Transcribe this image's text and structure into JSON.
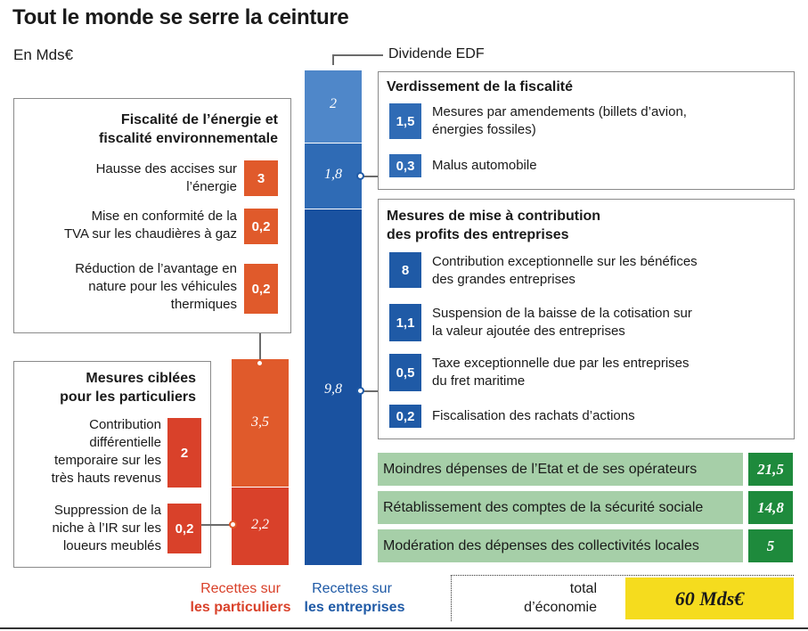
{
  "title": "Tout le monde se serre la ceinture",
  "unit": "En Mds€",
  "dividende_label": "Dividende EDF",
  "fiscalite_energie": {
    "title_line1": "Fiscalité de l’énergie et",
    "title_line2": "fiscalité environnementale",
    "items": [
      {
        "line1": "Hausse des accises sur",
        "line2": "l’énergie",
        "line3": "",
        "value": "3"
      },
      {
        "line1": "Mise en conformité de la",
        "line2": "TVA sur les chaudières à gaz",
        "line3": "",
        "value": "0,2"
      },
      {
        "line1": "Réduction de l’avantage en",
        "line2": "nature pour les véhicules",
        "line3": "thermiques",
        "value": "0,2"
      }
    ]
  },
  "particuliers": {
    "title_line1": "Mesures ciblées",
    "title_line2": "pour les particuliers",
    "items": [
      {
        "line1": "Contribution",
        "line2": "différentielle",
        "line3": "temporaire sur les",
        "line4": "très hauts revenus",
        "value": "2"
      },
      {
        "line1": "Suppression de la",
        "line2": "niche à l’IR sur les",
        "line3": "loueurs meublés",
        "line4": "",
        "value": "0,2"
      }
    ]
  },
  "verdissement": {
    "title": "Verdissement de la fiscalité",
    "items": [
      {
        "line1": "Mesures par  amendements (billets d’avion,",
        "line2": "énergies fossiles)",
        "value": "1,5"
      },
      {
        "line1": "Malus automobile",
        "line2": "",
        "value": "0,3"
      }
    ]
  },
  "profits": {
    "title_line1": "Mesures de mise à contribution",
    "title_line2": "des profits des entreprises",
    "items": [
      {
        "line1": "Contribution exceptionnelle sur les bénéfices",
        "line2": "des grandes entreprises",
        "value": "8"
      },
      {
        "line1": "Suspension de la baisse de la cotisation sur",
        "line2": "la valeur ajoutée des entreprises",
        "value": "1,1"
      },
      {
        "line1": "Taxe exceptionnelle due par les entreprises",
        "line2": "du fret maritime",
        "value": "0,5"
      },
      {
        "line1": "Fiscalisation des rachats d’actions",
        "line2": "",
        "value": "0,2"
      }
    ]
  },
  "economies": [
    {
      "label": "Moindres dépenses de l’Etat et de ses opérateurs",
      "value": "21,5"
    },
    {
      "label": "Rétablissement des comptes de la sécurité sociale",
      "value": "14,8"
    },
    {
      "label": "Modération des dépenses des collectivités locales",
      "value": "5"
    }
  ],
  "total": {
    "label_line1": "total",
    "label_line2": "d’économie",
    "value": "60 Mds€"
  },
  "legend": {
    "particuliers_line1": "Recettes sur",
    "particuliers_line2": "les particuliers",
    "entreprises_line1": "Recettes sur",
    "entreprises_line2": "les entreprises"
  },
  "colors": {
    "particuliers": "#e05a2b",
    "particuliers_dark": "#d9412a",
    "entreprises": "#1f5aa6",
    "dividende": "#4f87c9",
    "vert": "#4f87c9",
    "economies": "#1e8a3c",
    "total": "#f5dc1e"
  },
  "chart_data": {
    "type": "bar",
    "categories": [
      "Recettes sur les particuliers",
      "Recettes sur les entreprises"
    ],
    "series": [
      {
        "name": "",
        "values": [
          2.2,
          9.8
        ]
      },
      {
        "name": "",
        "values": [
          3.5,
          1.8
        ]
      },
      {
        "name": "Dividende EDF",
        "values": [
          0,
          2
        ]
      }
    ],
    "segment_labels": [
      [
        "2,2",
        "3,5"
      ],
      [
        "9,8",
        "1,8",
        "2"
      ]
    ],
    "ylabel": "En Mds€"
  }
}
